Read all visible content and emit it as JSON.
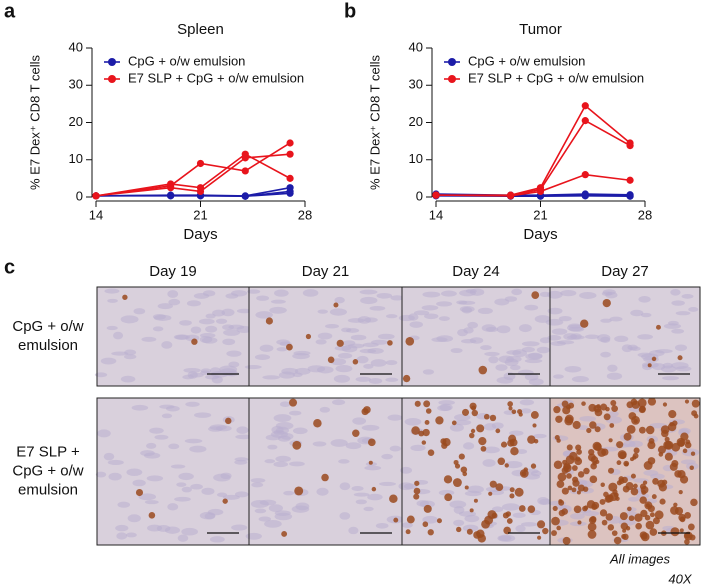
{
  "chart_data": [
    {
      "type": "line",
      "panel": "a",
      "title": "Spleen",
      "xlabel": "Days",
      "ylabel": "% E7 Dex⁺ CD8 T cells",
      "x": [
        14,
        19,
        21,
        24,
        27
      ],
      "xlim": [
        14,
        28
      ],
      "xticks": [
        14,
        21,
        28
      ],
      "ylim": [
        0,
        40
      ],
      "yticks": [
        0,
        10,
        20,
        30,
        40
      ],
      "legend": "upper left",
      "series": [
        {
          "name": "CpG + o/w emulsion",
          "color": "#1c1ca8",
          "lines": [
            [
              0.3,
              0.5,
              0.5,
              0.3,
              2.5
            ],
            [
              0.3,
              0.4,
              0.4,
              0.2,
              1.5
            ],
            [
              0.3,
              0.3,
              0.3,
              0.2,
              1
            ]
          ]
        },
        {
          "name": "E7 SLP + CpG + o/w emulsion",
          "color": "#e8141c",
          "lines": [
            [
              0.3,
              3,
              9,
              7,
              14.5
            ],
            [
              0.3,
              3.5,
              2.5,
              11.5,
              5
            ],
            [
              0.3,
              2.5,
              1.5,
              10.5,
              11.5
            ]
          ]
        }
      ]
    },
    {
      "type": "line",
      "panel": "b",
      "title": "Tumor",
      "xlabel": "Days",
      "ylabel": "% E7 Dex⁺ CD8 T cells",
      "x": [
        14,
        19,
        21,
        24,
        27
      ],
      "xlim": [
        14,
        28
      ],
      "xticks": [
        14,
        21,
        28
      ],
      "ylim": [
        0,
        40
      ],
      "yticks": [
        0,
        10,
        20,
        30,
        40
      ],
      "legend": "upper left",
      "series": [
        {
          "name": "CpG + o/w emulsion",
          "color": "#1c1ca8",
          "lines": [
            [
              0.8,
              0.5,
              0.5,
              0.8,
              0.6
            ],
            [
              0.5,
              0.3,
              0.3,
              0.5,
              0.3
            ],
            [
              0.3,
              0.2,
              0.2,
              0.3,
              0.2
            ]
          ]
        },
        {
          "name": "E7 SLP + CpG + o/w emulsion",
          "color": "#e8141c",
          "lines": [
            [
              0.5,
              0.5,
              2.5,
              24.5,
              14.5
            ],
            [
              0.5,
              0.4,
              2,
              20.5,
              13.8
            ],
            [
              0.5,
              0.3,
              1.5,
              6,
              4.5
            ]
          ]
        }
      ]
    }
  ],
  "panel_c": {
    "panel": "c",
    "columns": [
      "Day 19",
      "Day 21",
      "Day 24",
      "Day 27"
    ],
    "rows": [
      [
        "CpG + o/w",
        "emulsion"
      ],
      [
        "E7 SLP +",
        "CpG + o/w",
        "emulsion"
      ]
    ],
    "note": [
      "All images",
      "40X"
    ]
  }
}
